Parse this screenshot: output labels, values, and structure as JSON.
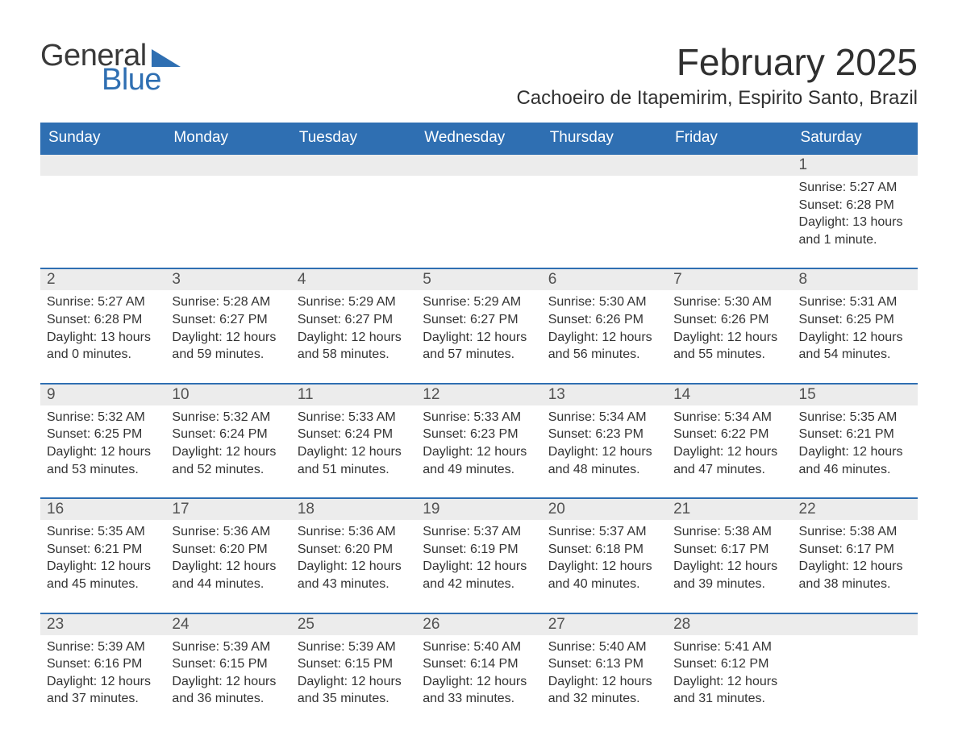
{
  "branding": {
    "name_part1": "General",
    "name_part2": "Blue",
    "color_primary": "#2f6fb2",
    "color_text_dark": "#3a3a3a"
  },
  "header": {
    "month_title": "February 2025",
    "location": "Cachoeiro de Itapemirim, Espirito Santo, Brazil"
  },
  "style": {
    "header_row_bg": "#2f6fb2",
    "header_row_text": "#ffffff",
    "daynum_row_bg": "#ececec",
    "daynum_text": "#525252",
    "body_text": "#303030",
    "week_rule_color": "#2f6fb2",
    "background": "#ffffff",
    "font_family": "Segoe UI"
  },
  "calendar": {
    "day_labels": [
      "Sunday",
      "Monday",
      "Tuesday",
      "Wednesday",
      "Thursday",
      "Friday",
      "Saturday"
    ],
    "weeks": [
      {
        "show_rule": false,
        "days": [
          {
            "num": "",
            "sunrise": "",
            "sunset": "",
            "daylight1": "",
            "daylight2": ""
          },
          {
            "num": "",
            "sunrise": "",
            "sunset": "",
            "daylight1": "",
            "daylight2": ""
          },
          {
            "num": "",
            "sunrise": "",
            "sunset": "",
            "daylight1": "",
            "daylight2": ""
          },
          {
            "num": "",
            "sunrise": "",
            "sunset": "",
            "daylight1": "",
            "daylight2": ""
          },
          {
            "num": "",
            "sunrise": "",
            "sunset": "",
            "daylight1": "",
            "daylight2": ""
          },
          {
            "num": "",
            "sunrise": "",
            "sunset": "",
            "daylight1": "",
            "daylight2": ""
          },
          {
            "num": "1",
            "sunrise": "Sunrise: 5:27 AM",
            "sunset": "Sunset: 6:28 PM",
            "daylight1": "Daylight: 13 hours",
            "daylight2": "and 1 minute."
          }
        ]
      },
      {
        "show_rule": true,
        "days": [
          {
            "num": "2",
            "sunrise": "Sunrise: 5:27 AM",
            "sunset": "Sunset: 6:28 PM",
            "daylight1": "Daylight: 13 hours",
            "daylight2": "and 0 minutes."
          },
          {
            "num": "3",
            "sunrise": "Sunrise: 5:28 AM",
            "sunset": "Sunset: 6:27 PM",
            "daylight1": "Daylight: 12 hours",
            "daylight2": "and 59 minutes."
          },
          {
            "num": "4",
            "sunrise": "Sunrise: 5:29 AM",
            "sunset": "Sunset: 6:27 PM",
            "daylight1": "Daylight: 12 hours",
            "daylight2": "and 58 minutes."
          },
          {
            "num": "5",
            "sunrise": "Sunrise: 5:29 AM",
            "sunset": "Sunset: 6:27 PM",
            "daylight1": "Daylight: 12 hours",
            "daylight2": "and 57 minutes."
          },
          {
            "num": "6",
            "sunrise": "Sunrise: 5:30 AM",
            "sunset": "Sunset: 6:26 PM",
            "daylight1": "Daylight: 12 hours",
            "daylight2": "and 56 minutes."
          },
          {
            "num": "7",
            "sunrise": "Sunrise: 5:30 AM",
            "sunset": "Sunset: 6:26 PM",
            "daylight1": "Daylight: 12 hours",
            "daylight2": "and 55 minutes."
          },
          {
            "num": "8",
            "sunrise": "Sunrise: 5:31 AM",
            "sunset": "Sunset: 6:25 PM",
            "daylight1": "Daylight: 12 hours",
            "daylight2": "and 54 minutes."
          }
        ]
      },
      {
        "show_rule": true,
        "days": [
          {
            "num": "9",
            "sunrise": "Sunrise: 5:32 AM",
            "sunset": "Sunset: 6:25 PM",
            "daylight1": "Daylight: 12 hours",
            "daylight2": "and 53 minutes."
          },
          {
            "num": "10",
            "sunrise": "Sunrise: 5:32 AM",
            "sunset": "Sunset: 6:24 PM",
            "daylight1": "Daylight: 12 hours",
            "daylight2": "and 52 minutes."
          },
          {
            "num": "11",
            "sunrise": "Sunrise: 5:33 AM",
            "sunset": "Sunset: 6:24 PM",
            "daylight1": "Daylight: 12 hours",
            "daylight2": "and 51 minutes."
          },
          {
            "num": "12",
            "sunrise": "Sunrise: 5:33 AM",
            "sunset": "Sunset: 6:23 PM",
            "daylight1": "Daylight: 12 hours",
            "daylight2": "and 49 minutes."
          },
          {
            "num": "13",
            "sunrise": "Sunrise: 5:34 AM",
            "sunset": "Sunset: 6:23 PM",
            "daylight1": "Daylight: 12 hours",
            "daylight2": "and 48 minutes."
          },
          {
            "num": "14",
            "sunrise": "Sunrise: 5:34 AM",
            "sunset": "Sunset: 6:22 PM",
            "daylight1": "Daylight: 12 hours",
            "daylight2": "and 47 minutes."
          },
          {
            "num": "15",
            "sunrise": "Sunrise: 5:35 AM",
            "sunset": "Sunset: 6:21 PM",
            "daylight1": "Daylight: 12 hours",
            "daylight2": "and 46 minutes."
          }
        ]
      },
      {
        "show_rule": true,
        "days": [
          {
            "num": "16",
            "sunrise": "Sunrise: 5:35 AM",
            "sunset": "Sunset: 6:21 PM",
            "daylight1": "Daylight: 12 hours",
            "daylight2": "and 45 minutes."
          },
          {
            "num": "17",
            "sunrise": "Sunrise: 5:36 AM",
            "sunset": "Sunset: 6:20 PM",
            "daylight1": "Daylight: 12 hours",
            "daylight2": "and 44 minutes."
          },
          {
            "num": "18",
            "sunrise": "Sunrise: 5:36 AM",
            "sunset": "Sunset: 6:20 PM",
            "daylight1": "Daylight: 12 hours",
            "daylight2": "and 43 minutes."
          },
          {
            "num": "19",
            "sunrise": "Sunrise: 5:37 AM",
            "sunset": "Sunset: 6:19 PM",
            "daylight1": "Daylight: 12 hours",
            "daylight2": "and 42 minutes."
          },
          {
            "num": "20",
            "sunrise": "Sunrise: 5:37 AM",
            "sunset": "Sunset: 6:18 PM",
            "daylight1": "Daylight: 12 hours",
            "daylight2": "and 40 minutes."
          },
          {
            "num": "21",
            "sunrise": "Sunrise: 5:38 AM",
            "sunset": "Sunset: 6:17 PM",
            "daylight1": "Daylight: 12 hours",
            "daylight2": "and 39 minutes."
          },
          {
            "num": "22",
            "sunrise": "Sunrise: 5:38 AM",
            "sunset": "Sunset: 6:17 PM",
            "daylight1": "Daylight: 12 hours",
            "daylight2": "and 38 minutes."
          }
        ]
      },
      {
        "show_rule": true,
        "days": [
          {
            "num": "23",
            "sunrise": "Sunrise: 5:39 AM",
            "sunset": "Sunset: 6:16 PM",
            "daylight1": "Daylight: 12 hours",
            "daylight2": "and 37 minutes."
          },
          {
            "num": "24",
            "sunrise": "Sunrise: 5:39 AM",
            "sunset": "Sunset: 6:15 PM",
            "daylight1": "Daylight: 12 hours",
            "daylight2": "and 36 minutes."
          },
          {
            "num": "25",
            "sunrise": "Sunrise: 5:39 AM",
            "sunset": "Sunset: 6:15 PM",
            "daylight1": "Daylight: 12 hours",
            "daylight2": "and 35 minutes."
          },
          {
            "num": "26",
            "sunrise": "Sunrise: 5:40 AM",
            "sunset": "Sunset: 6:14 PM",
            "daylight1": "Daylight: 12 hours",
            "daylight2": "and 33 minutes."
          },
          {
            "num": "27",
            "sunrise": "Sunrise: 5:40 AM",
            "sunset": "Sunset: 6:13 PM",
            "daylight1": "Daylight: 12 hours",
            "daylight2": "and 32 minutes."
          },
          {
            "num": "28",
            "sunrise": "Sunrise: 5:41 AM",
            "sunset": "Sunset: 6:12 PM",
            "daylight1": "Daylight: 12 hours",
            "daylight2": "and 31 minutes."
          },
          {
            "num": "",
            "sunrise": "",
            "sunset": "",
            "daylight1": "",
            "daylight2": ""
          }
        ]
      }
    ]
  }
}
